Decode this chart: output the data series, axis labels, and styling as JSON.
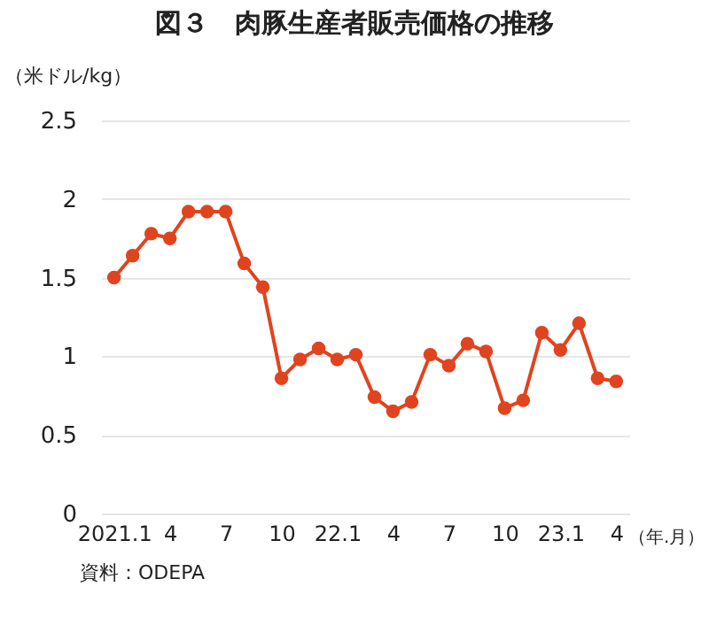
{
  "chart_data": {
    "type": "line",
    "title": "図３　肉豚生産者販売価格の推移",
    "ylabel": "（米ドル/kg）",
    "xlabel": "（年.月）",
    "annotations": [
      "資料：ODEPA"
    ],
    "categories": [
      "2021.1",
      null,
      null,
      "4",
      null,
      null,
      "7",
      null,
      null,
      "10",
      null,
      null,
      "22.1",
      null,
      null,
      "4",
      null,
      null,
      "7",
      null,
      null,
      "10",
      null,
      null,
      "23.1",
      null,
      null,
      "4"
    ],
    "series": [
      {
        "color": "#e0441e",
        "values": [
          1.5,
          1.64,
          1.78,
          1.75,
          1.92,
          1.92,
          1.92,
          1.59,
          1.44,
          0.86,
          0.98,
          1.05,
          0.98,
          1.01,
          0.74,
          0.65,
          0.71,
          1.01,
          0.94,
          1.08,
          1.03,
          0.67,
          0.72,
          1.15,
          1.04,
          1.21,
          0.86,
          0.84
        ]
      }
    ],
    "ylim": [
      0,
      2.5
    ],
    "yticks": [
      0,
      0.5,
      1,
      1.5,
      2,
      2.5
    ],
    "grid": "y",
    "marker": "circle",
    "line_style": "solid"
  }
}
